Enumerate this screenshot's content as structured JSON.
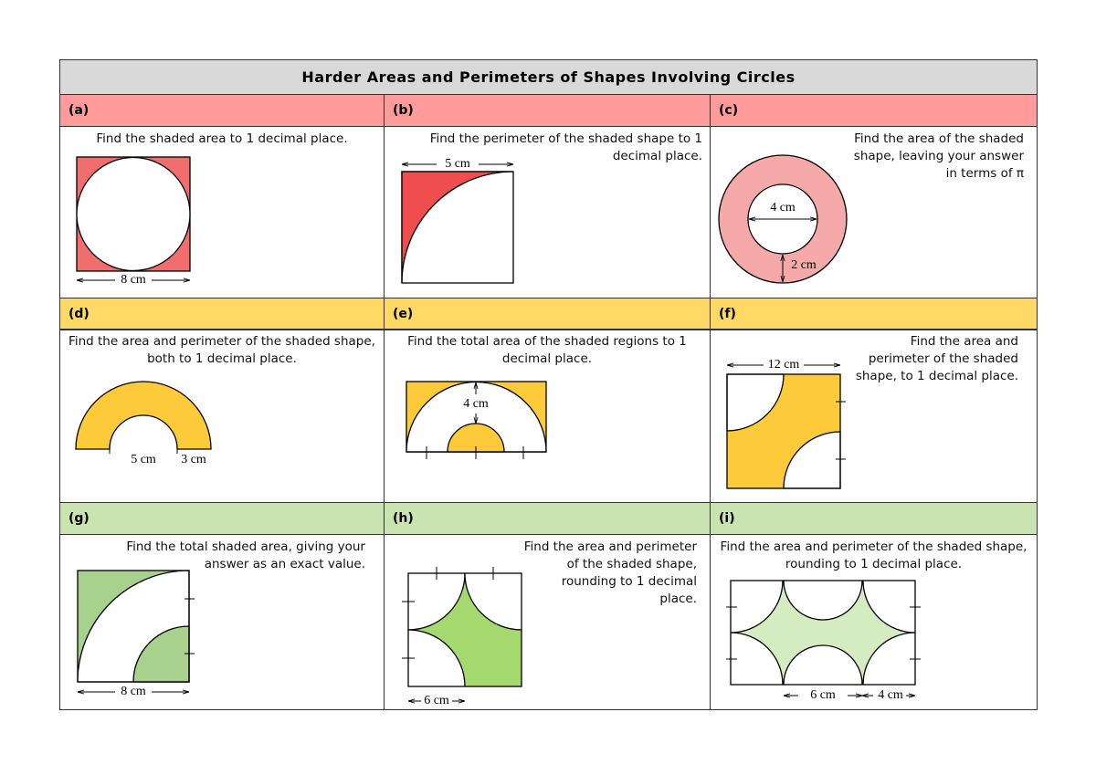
{
  "title": "Harder Areas and Perimeters of Shapes Involving Circles",
  "questions": [
    {
      "label": "(a)",
      "text": "Find the shaded area to 1 decimal place.",
      "labels": [
        "8 cm"
      ]
    },
    {
      "label": "(b)",
      "text": "Find the perimeter of the shaded shape to 1 decimal place.",
      "labels": [
        "5 cm"
      ]
    },
    {
      "label": "(c)",
      "text": "Find the area of the shaded shape, leaving your answer in terms of π",
      "labels": [
        "4 cm",
        "2 cm"
      ]
    },
    {
      "label": "(d)",
      "text": "Find the area and perimeter of the shaded shape, both to 1 decimal place.",
      "labels": [
        "5 cm",
        "3 cm"
      ]
    },
    {
      "label": "(e)",
      "text": "Find the total area of the shaded regions to 1 decimal place.",
      "labels": [
        "4 cm"
      ]
    },
    {
      "label": "(f)",
      "text": "Find the area and perimeter of the shaded shape, to 1 decimal place.",
      "labels": [
        "12 cm"
      ]
    },
    {
      "label": "(g)",
      "text": "Find the total shaded area, giving your answer as an exact value.",
      "labels": [
        "8 cm"
      ]
    },
    {
      "label": "(h)",
      "text": "Find the area and perimeter of the shaded shape, rounding to 1 decimal place.",
      "labels": [
        "6 cm"
      ]
    },
    {
      "label": "(i)",
      "text": "Find the area and perimeter of the shaded shape, rounding to 1 decimal place.",
      "labels": [
        "6 cm",
        "4 cm"
      ]
    }
  ]
}
